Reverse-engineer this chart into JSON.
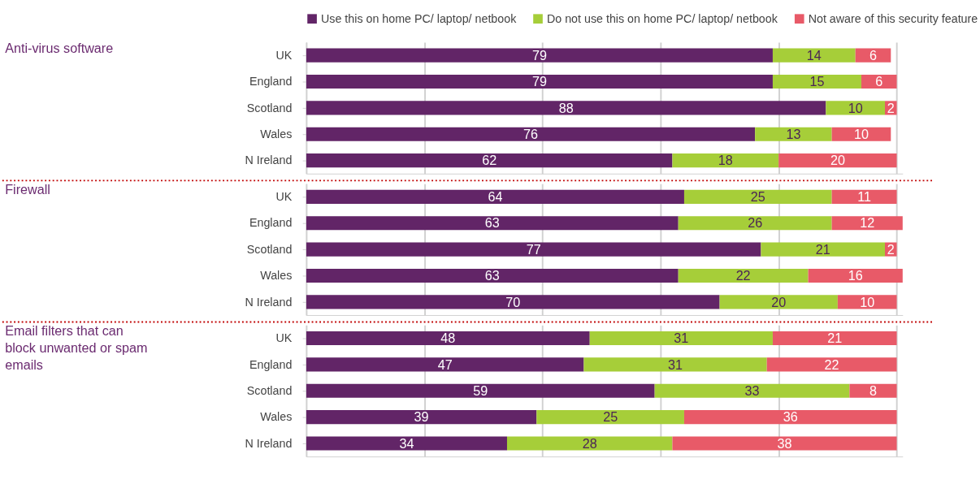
{
  "chart_data": [
    {
      "type": "bar",
      "orientation": "horizontal",
      "stacked": true,
      "ylabel": "Anti-virus software",
      "categories": [
        "UK",
        "England",
        "Scotland",
        "Wales",
        "N Ireland"
      ],
      "xlim": [
        0,
        101
      ],
      "xticks": [
        {
          "value": 0,
          "label": null
        },
        {
          "value": 20,
          "label": null
        },
        {
          "value": 40,
          "label": null
        },
        {
          "value": 60,
          "label": null
        },
        {
          "value": 80,
          "label": null
        },
        {
          "value": 100,
          "label": null
        }
      ],
      "grid": "x",
      "data_labels": true,
      "legend": "top",
      "tick_labels": "y",
      "series": [
        {
          "name": "Use this on home PC/ laptop/ netbook",
          "color": "#622567",
          "values": [
            79,
            79,
            88,
            76,
            62
          ]
        },
        {
          "name": "Do not use this on home PC/ laptop/ netbook",
          "color": "#a6ce39",
          "values": [
            14,
            15,
            10,
            13,
            18
          ]
        },
        {
          "name": "Not aware of this security feature",
          "color": "#e85a68",
          "values": [
            6,
            6,
            2,
            10,
            20
          ]
        }
      ]
    },
    {
      "type": "bar",
      "orientation": "horizontal",
      "stacked": true,
      "ylabel": "Firewall",
      "categories": [
        "UK",
        "England",
        "Scotland",
        "Wales",
        "N Ireland"
      ],
      "xlim": [
        0,
        101
      ],
      "xticks": [
        {
          "value": 0,
          "label": null
        },
        {
          "value": 20,
          "label": null
        },
        {
          "value": 40,
          "label": null
        },
        {
          "value": 60,
          "label": null
        },
        {
          "value": 80,
          "label": null
        },
        {
          "value": 100,
          "label": null
        }
      ],
      "grid": "x",
      "data_labels": true,
      "tick_labels": "y",
      "series": [
        {
          "color": "#622567",
          "values": [
            64,
            63,
            77,
            63,
            70
          ]
        },
        {
          "color": "#a6ce39",
          "values": [
            25,
            26,
            21,
            22,
            20
          ]
        },
        {
          "color": "#e85a68",
          "values": [
            11,
            12,
            2,
            16,
            10
          ]
        }
      ]
    },
    {
      "type": "bar",
      "orientation": "horizontal",
      "stacked": true,
      "ylabel": "Email filters that can block unwanted or spam emails",
      "categories": [
        "UK",
        "England",
        "Scotland",
        "Wales",
        "N Ireland"
      ],
      "xlim": [
        0,
        101
      ],
      "xticks": [
        {
          "value": 0,
          "label": null
        },
        {
          "value": 20,
          "label": null
        },
        {
          "value": 40,
          "label": null
        },
        {
          "value": 60,
          "label": null
        },
        {
          "value": 80,
          "label": null
        },
        {
          "value": 100,
          "label": null
        }
      ],
      "grid": "x",
      "data_labels": true,
      "tick_labels": "y",
      "series": [
        {
          "color": "#622567",
          "values": [
            48,
            47,
            59,
            39,
            34
          ]
        },
        {
          "color": "#a6ce39",
          "values": [
            31,
            31,
            33,
            25,
            28
          ]
        },
        {
          "color": "#e85a68",
          "values": [
            21,
            22,
            8,
            36,
            38
          ]
        }
      ]
    }
  ]
}
